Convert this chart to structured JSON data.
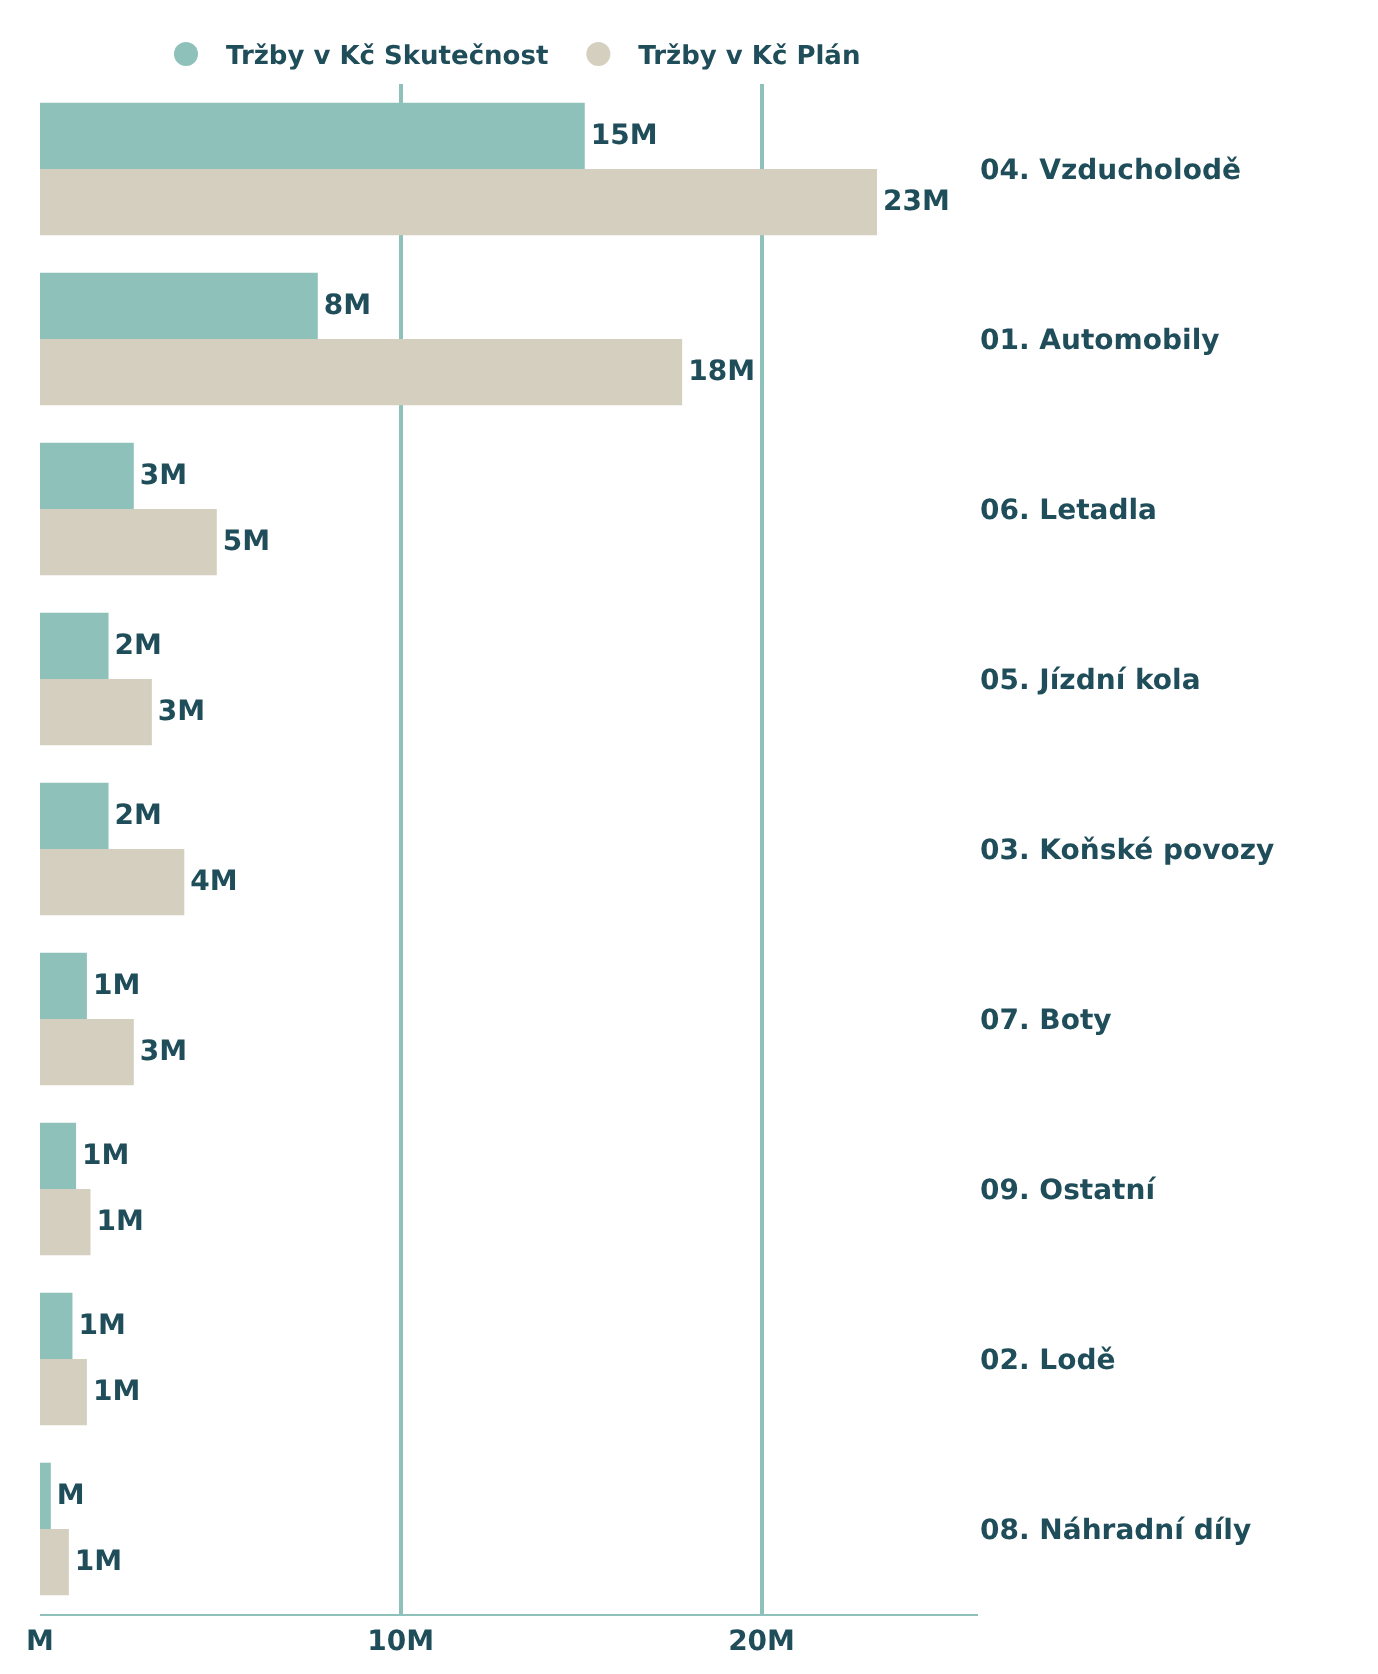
{
  "chart_data": {
    "type": "bar",
    "orientation": "horizontal",
    "categories": [
      "04. Vzducholodě",
      "01. Automobily",
      "06. Letadla",
      "05. Jízdní kola",
      "03. Koňské povozy",
      "07. Boty",
      "09. Ostatní",
      "02. Lodě",
      "08. Náhradní díly"
    ],
    "series": [
      {
        "name": "Tržby v Kč Skutečnost",
        "color": "#8fc1bb",
        "values": [
          15.1,
          7.7,
          2.6,
          1.9,
          1.9,
          1.3,
          1.0,
          0.9,
          0.3
        ],
        "value_labels": [
          "15M",
          "8M",
          "3M",
          "2M",
          "2M",
          "1M",
          "1M",
          "1M",
          "M"
        ]
      },
      {
        "name": "Tržby v Kč Plán",
        "color": "#d4cfbf",
        "values": [
          23.2,
          17.8,
          4.9,
          3.1,
          4.0,
          2.6,
          1.4,
          1.3,
          0.8
        ],
        "value_labels": [
          "23M",
          "18M",
          "5M",
          "3M",
          "4M",
          "3M",
          "1M",
          "1M",
          "1M"
        ]
      }
    ],
    "xlim": [
      0,
      26
    ],
    "xticks": [
      {
        "value": 0,
        "label": "M"
      },
      {
        "value": 10,
        "label": "10M"
      },
      {
        "value": 20,
        "label": "20M"
      }
    ],
    "grid": "x",
    "legend": "top",
    "marker": "circle"
  }
}
